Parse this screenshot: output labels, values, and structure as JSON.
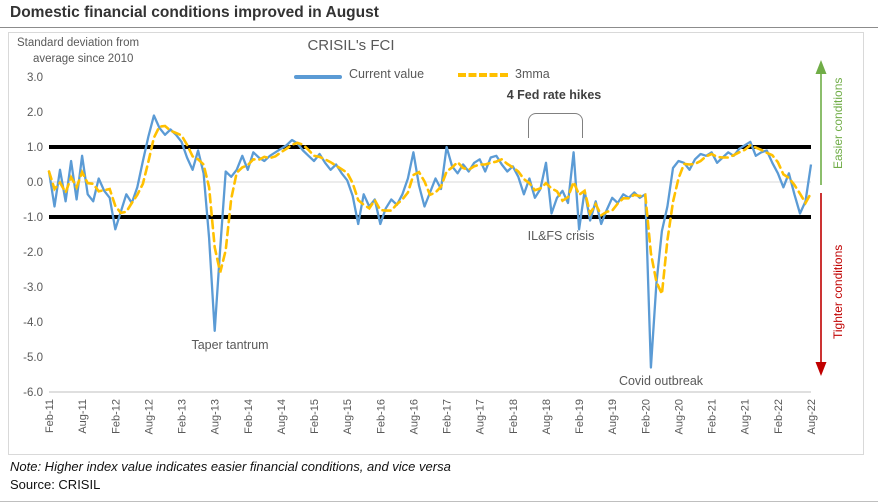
{
  "page": {
    "title": "Domestic financial conditions improved in August",
    "note": "Note: Higher index value indicates easier financial conditions, and vice versa",
    "source": "Source: CRISIL"
  },
  "chart": {
    "heading": "CRISIL's FCI",
    "unit_label_line1": "Standard deviation from",
    "unit_label_line2": "average since 2010",
    "legend": [
      {
        "label": "Current value",
        "color": "#5B9BD5",
        "style": "solid"
      },
      {
        "label": "3mma",
        "color": "#FFC000",
        "style": "dashed"
      }
    ],
    "annotations": {
      "fed_rate_hikes": "4 Fed rate hikes",
      "taper_tantrum": "Taper tantrum",
      "ilfs_crisis": "IL&FS crisis",
      "covid_outbreak": "Covid outbreak",
      "easier": "Easier conditions",
      "tighter": "Tighter conditions"
    },
    "colors": {
      "current": "#5B9BD5",
      "mma": "#FFC000",
      "easier_arrow": "#70AD47",
      "tighter_arrow": "#C00000",
      "reference_line": "#000000",
      "axis_text": "#595959",
      "zero_gridline": "#d9d9d9",
      "axis_line": "#bfbfbf"
    }
  },
  "chart_data": {
    "type": "line",
    "title": "CRISIL's FCI",
    "ylabel": "Standard deviation from average since 2010",
    "ylim": [
      -6.0,
      3.0
    ],
    "y_ticks": [
      3.0,
      2.0,
      1.0,
      0.0,
      -1.0,
      -2.0,
      -3.0,
      -4.0,
      -5.0,
      -6.0
    ],
    "reference_lines": [
      1.0,
      -1.0
    ],
    "frequency": "monthly",
    "x_start": "Feb-2011",
    "x_end": "Aug-2022",
    "x_tick_labels": [
      "Feb-11",
      "Aug-11",
      "Feb-12",
      "Aug-12",
      "Feb-13",
      "Aug-13",
      "Feb-14",
      "Aug-14",
      "Feb-15",
      "Aug-15",
      "Feb-16",
      "Aug-16",
      "Feb-17",
      "Aug-17",
      "Feb-18",
      "Aug-18",
      "Feb-19",
      "Aug-19",
      "Feb-20",
      "Aug-20",
      "Feb-21",
      "Aug-21",
      "Feb-22",
      "Aug-22"
    ],
    "points_per_tick": 6,
    "legend_position": "top",
    "grid": "zero-line-only",
    "series": [
      {
        "name": "Current value",
        "color": "#5B9BD5",
        "style": "solid",
        "values": [
          0.3,
          -0.7,
          0.35,
          -0.55,
          0.6,
          -0.5,
          0.75,
          -0.35,
          -0.55,
          0.1,
          -0.25,
          -0.45,
          -1.35,
          -0.85,
          -0.35,
          -0.6,
          -0.15,
          0.6,
          1.3,
          1.9,
          1.55,
          1.35,
          1.5,
          1.35,
          1.15,
          0.7,
          0.35,
          0.9,
          0.25,
          -1.6,
          -4.25,
          -1.9,
          0.3,
          0.15,
          0.35,
          0.75,
          0.35,
          0.85,
          0.7,
          0.6,
          0.75,
          0.85,
          0.95,
          1.05,
          1.2,
          1.1,
          0.9,
          0.75,
          0.6,
          0.8,
          0.55,
          0.35,
          0.5,
          0.25,
          0.05,
          -0.4,
          -1.2,
          -0.35,
          -0.7,
          -0.5,
          -1.2,
          -0.75,
          -0.5,
          -0.65,
          -0.35,
          0.1,
          0.85,
          -0.1,
          -0.7,
          -0.3,
          0.1,
          -0.2,
          1.0,
          0.45,
          0.25,
          0.5,
          0.3,
          0.55,
          0.65,
          0.3,
          0.7,
          0.75,
          0.5,
          0.3,
          0.45,
          0.15,
          -0.35,
          0.1,
          -0.45,
          -0.2,
          0.55,
          -0.9,
          -0.45,
          -0.25,
          -0.6,
          0.85,
          -1.35,
          -0.25,
          -1.1,
          -0.55,
          -1.2,
          -0.8,
          -0.45,
          -0.6,
          -0.35,
          -0.45,
          -0.3,
          -0.45,
          -0.35,
          -5.3,
          -2.9,
          -1.4,
          -0.7,
          0.4,
          0.6,
          0.55,
          0.35,
          0.65,
          0.8,
          0.75,
          0.85,
          0.55,
          0.7,
          0.85,
          0.75,
          0.95,
          1.05,
          1.15,
          0.75,
          0.85,
          0.9,
          0.55,
          0.25,
          -0.15,
          0.25,
          -0.35,
          -0.9,
          -0.55,
          0.5
        ]
      },
      {
        "name": "3mma",
        "color": "#FFC000",
        "style": "dashed",
        "derived": "3-month moving average of Current value"
      }
    ],
    "event_annotations": [
      {
        "label": "Taper tantrum",
        "near": "Aug-13"
      },
      {
        "label": "4 Fed rate hikes",
        "near": "May-18 to Dec-18"
      },
      {
        "label": "IL&FS crisis",
        "near": "Sep-18"
      },
      {
        "label": "Covid outbreak",
        "near": "Mar-20"
      }
    ],
    "direction_labels": [
      {
        "label": "Easier conditions",
        "color": "#70AD47",
        "arrow": "up"
      },
      {
        "label": "Tighter conditions",
        "color": "#C00000",
        "arrow": "down"
      }
    ]
  }
}
